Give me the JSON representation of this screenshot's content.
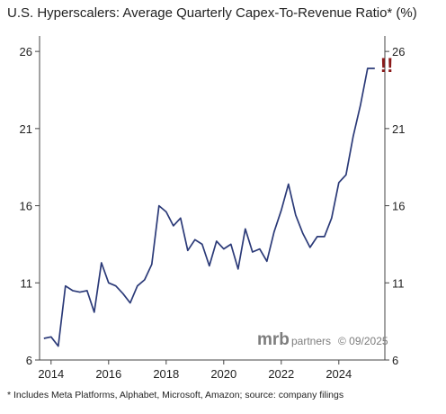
{
  "colors": {
    "line": "#2b3a78",
    "alert": "#8b1a1a",
    "axis": "#444444",
    "brand": "#7d7d7d"
  },
  "chart_data": {
    "type": "line",
    "title": "U.S. Hyperscalers: Average Quarterly Capex-To-Revenue Ratio* (%)",
    "footnote": "* Includes Meta Platforms, Alphabet, Microsoft, Amazon; source: company filings",
    "watermark": {
      "brand": "mrb",
      "suffix": "partners",
      "date": "© 09/2025"
    },
    "annotation": "!!",
    "xlim": [
      2013.6,
      2025.6
    ],
    "ylim": [
      6,
      27
    ],
    "x_ticks": [
      2014,
      2016,
      2018,
      2020,
      2022,
      2024
    ],
    "x_tick_labels": [
      "2014",
      "2016",
      "2018",
      "2020",
      "2022",
      "2024"
    ],
    "y_ticks": [
      6,
      11,
      16,
      21,
      26
    ],
    "y_tick_labels": [
      "6",
      "11",
      "16",
      "21",
      "26"
    ],
    "right_axis": true,
    "grid": false,
    "series": [
      {
        "x": [
          2013.75,
          2014.0,
          2014.25,
          2014.5,
          2014.75,
          2015.0,
          2015.25,
          2015.5,
          2015.75,
          2016.0,
          2016.25,
          2016.5,
          2016.75,
          2017.0,
          2017.25,
          2017.5,
          2017.75,
          2018.0,
          2018.25,
          2018.5,
          2018.75,
          2019.0,
          2019.25,
          2019.5,
          2019.75,
          2020.0,
          2020.25,
          2020.5,
          2020.75,
          2021.0,
          2021.25,
          2021.5,
          2021.75,
          2022.0,
          2022.25,
          2022.5,
          2022.75,
          2023.0,
          2023.25,
          2023.5,
          2023.75,
          2024.0,
          2024.25,
          2024.5,
          2024.75,
          2025.0,
          2025.25
        ],
        "values": [
          7.4,
          7.5,
          6.9,
          10.8,
          10.5,
          10.4,
          10.5,
          9.1,
          12.3,
          11.0,
          10.8,
          10.3,
          9.7,
          10.8,
          11.2,
          12.2,
          16.0,
          15.6,
          14.7,
          15.2,
          13.1,
          13.8,
          13.5,
          12.1,
          13.7,
          13.2,
          13.5,
          11.9,
          14.5,
          13.0,
          13.2,
          12.4,
          14.3,
          15.7,
          17.4,
          15.4,
          14.2,
          13.3,
          14.0,
          14.0,
          15.2,
          17.5,
          18.0,
          20.5,
          22.5,
          24.9,
          24.9
        ]
      }
    ]
  }
}
